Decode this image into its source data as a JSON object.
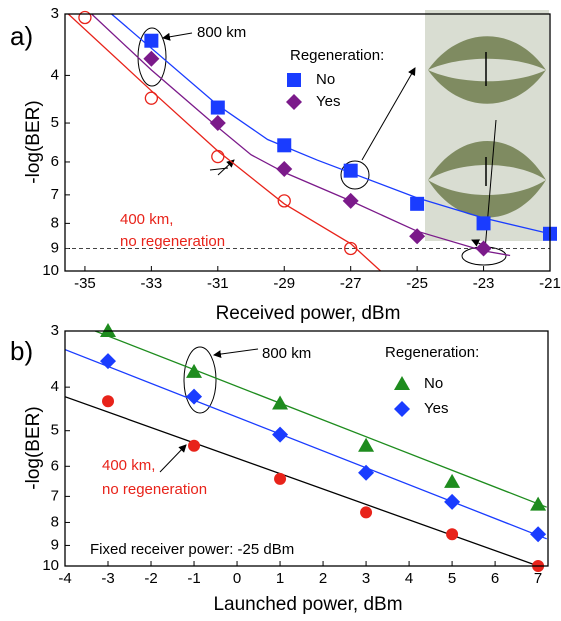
{
  "chart_data": [
    {
      "type": "scatter",
      "label": "a)",
      "x_label": "Received power, dBm",
      "y_label": "-log(BER)",
      "xlim": [
        -35.6,
        -21
      ],
      "xticks": [
        -35,
        -33,
        -31,
        -29,
        -27,
        -25,
        -23,
        -21
      ],
      "ylim": [
        3,
        10
      ],
      "yticks": [
        3,
        4,
        5,
        6,
        7,
        8,
        9,
        10
      ],
      "yscale": "log",
      "y_inverted": true,
      "reference_line": 9,
      "legend_title": "Regeneration:",
      "series": [
        {
          "name": "No",
          "marker": "square",
          "color": "#1a3cff",
          "fit_color": "#1a3cff",
          "x": [
            -33,
            -31,
            -29,
            -27,
            -25,
            -23,
            -21
          ],
          "values": [
            3.4,
            4.65,
            5.55,
            6.25,
            7.3,
            8.0,
            8.4
          ],
          "fit": {
            "x": [
              -34.2,
              -31,
              -29.5,
              -28,
              -25,
              -23,
              -21
            ],
            "y": [
              3,
              4.6,
              5.4,
              5.95,
              7.1,
              7.8,
              8.4
            ]
          }
        },
        {
          "name": "Yes",
          "marker": "diamond",
          "color": "#7b1a8a",
          "fit_color": "#7b1a8a",
          "x": [
            -33,
            -31,
            -29,
            -27,
            -25,
            -23
          ],
          "values": [
            3.7,
            5.0,
            6.2,
            7.2,
            8.5,
            9.0
          ],
          "fit": {
            "x": [
              -34.8,
              -33,
              -31,
              -30,
              -29,
              -27,
              -25,
              -23,
              -22.2
            ],
            "y": [
              3,
              3.9,
              5.1,
              5.8,
              6.3,
              7.2,
              8.3,
              9.1,
              9.3
            ]
          }
        },
        {
          "marker": "circle-open",
          "color": "#e8231a",
          "fit_color": "#e8231a",
          "x": [
            -35,
            -33,
            -31,
            -29,
            -27
          ],
          "values": [
            3.05,
            4.45,
            5.85,
            7.2,
            9.0
          ],
          "fit": {
            "x": [
              -35.5,
              -33,
              -31,
              -29,
              -27,
              -26.1
            ],
            "y": [
              3,
              4.3,
              5.7,
              7.3,
              8.8,
              10
            ]
          }
        }
      ],
      "annotations": [
        "800 km",
        "400 km,",
        "no regeneration"
      ]
    },
    {
      "type": "scatter",
      "label": "b)",
      "x_label": "Launched power, dBm",
      "y_label": "-log(BER)",
      "xlim": [
        -4,
        7.23
      ],
      "xticks": [
        -4,
        -3,
        -2,
        -1,
        0,
        1,
        2,
        3,
        4,
        5,
        6,
        7
      ],
      "ylim": [
        3,
        10
      ],
      "yticks": [
        3,
        4,
        5,
        6,
        7,
        8,
        9,
        10
      ],
      "yscale": "log",
      "y_inverted": true,
      "legend_title": "Regeneration:",
      "series": [
        {
          "name": "No",
          "marker": "triangle",
          "color": "#1e8c1e",
          "fit_color": "#1e8c1e",
          "x": [
            -3,
            -1,
            1,
            3,
            5,
            7
          ],
          "values": [
            3.0,
            3.7,
            4.35,
            5.4,
            6.5,
            7.3
          ],
          "fit": {
            "x": [
              -3.3,
              7.2
            ],
            "y": [
              3,
              7.4
            ]
          }
        },
        {
          "name": "Yes",
          "marker": "diamond",
          "color": "#1a3cff",
          "fit_color": "#1a3cff",
          "x": [
            -3,
            -1,
            1,
            3,
            5,
            7
          ],
          "values": [
            3.5,
            4.2,
            5.1,
            6.2,
            7.2,
            8.5
          ],
          "fit": {
            "x": [
              -4,
              7.2
            ],
            "y": [
              3.3,
              8.7
            ]
          }
        },
        {
          "marker": "circle",
          "color": "#e8231a",
          "fit_color": "#000000",
          "x": [
            -3,
            -1,
            1,
            3,
            5,
            7
          ],
          "values": [
            4.3,
            5.4,
            6.4,
            7.6,
            8.5,
            10
          ],
          "fit": {
            "x": [
              -4,
              7
            ],
            "y": [
              4.2,
              10
            ]
          }
        }
      ],
      "annotations": [
        "800 km",
        "400 km,",
        "no regeneration",
        "Fixed receiver power: -25 dBm"
      ]
    }
  ]
}
